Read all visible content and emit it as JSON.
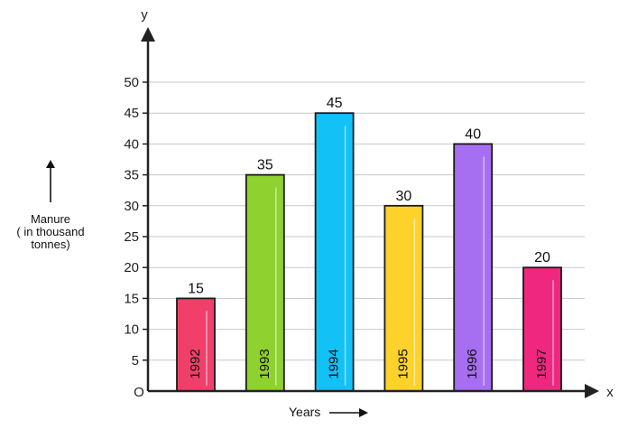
{
  "chart_data": {
    "type": "bar",
    "categories": [
      "1992",
      "1993",
      "1994",
      "1995",
      "1996",
      "1997"
    ],
    "values": [
      15,
      35,
      45,
      30,
      40,
      20
    ],
    "colors": [
      "#f0406a",
      "#8fd12e",
      "#12c1f5",
      "#fdd32b",
      "#a66ef0",
      "#f0277f"
    ],
    "title": "",
    "xlabel": "Years",
    "ylabel": [
      "Manure",
      "( in thousand",
      "tonnes)"
    ],
    "x_axis_name": "x",
    "y_axis_name": "y",
    "origin_label": "O",
    "ylim": [
      0,
      50
    ],
    "yticks": [
      5,
      10,
      15,
      20,
      25,
      30,
      35,
      40,
      45,
      50
    ],
    "grid": true,
    "category_label_position": "inside-bar-vertical",
    "value_labels": "above-bar"
  }
}
